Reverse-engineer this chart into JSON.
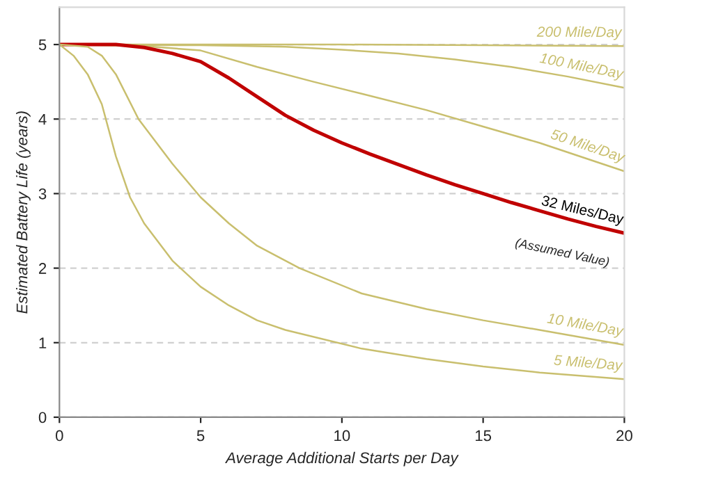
{
  "chart_data": {
    "type": "line",
    "xlabel": "Average Additional Starts per Day",
    "ylabel": "Estimated Battery Life (years)",
    "xlim": [
      0,
      20
    ],
    "xticks": [
      0,
      5,
      10,
      15,
      20
    ],
    "ylim": [
      0,
      5.5
    ],
    "yticks": [
      0,
      1,
      2,
      3,
      4,
      5
    ],
    "grid": "y",
    "legend": false,
    "line_style": "solid",
    "marker": "none",
    "series": [
      {
        "name": "200 Mile/Day",
        "color": "#c9bf6e",
        "x": [
          0,
          5,
          10,
          15,
          20
        ],
        "values": [
          5,
          5,
          5,
          4.99,
          4.98
        ]
      },
      {
        "name": "100 Mile/Day",
        "color": "#c9bf6e",
        "x": [
          0,
          5,
          8,
          10,
          12,
          14,
          16,
          18,
          20
        ],
        "values": [
          5,
          4.99,
          4.97,
          4.93,
          4.88,
          4.8,
          4.7,
          4.57,
          4.42
        ]
      },
      {
        "name": "50 Mile/Day",
        "color": "#c9bf6e",
        "x": [
          0,
          3,
          5,
          7,
          9,
          10.7,
          13,
          15,
          17,
          20
        ],
        "values": [
          5,
          4.98,
          4.92,
          4.7,
          4.5,
          4.34,
          4.12,
          3.9,
          3.68,
          3.3
        ]
      },
      {
        "name": "32 Miles/Day",
        "color": "#c00000",
        "x": [
          0,
          2,
          3,
          4,
          5,
          6,
          7,
          8,
          9,
          10,
          11,
          12,
          13,
          14,
          15,
          16,
          17,
          18,
          19,
          20
        ],
        "values": [
          5,
          5,
          4.96,
          4.88,
          4.77,
          4.55,
          4.3,
          4.05,
          3.85,
          3.68,
          3.53,
          3.39,
          3.25,
          3.12,
          3.0,
          2.88,
          2.77,
          2.66,
          2.56,
          2.47
        ]
      },
      {
        "name": "10 Mile/Day",
        "color": "#c9bf6e",
        "x": [
          0,
          1,
          1.5,
          2,
          2.8,
          4,
          5,
          6,
          7,
          8.5,
          10.7,
          13,
          15,
          17,
          20
        ],
        "values": [
          5,
          4.97,
          4.85,
          4.6,
          4.0,
          3.4,
          2.95,
          2.6,
          2.3,
          2.0,
          1.66,
          1.45,
          1.3,
          1.17,
          0.97
        ]
      },
      {
        "name": "5 Mile/Day",
        "color": "#c9bf6e",
        "x": [
          0,
          0.5,
          1,
          1.5,
          2,
          2.5,
          3,
          4,
          5,
          6,
          7,
          8,
          10.7,
          13,
          15,
          17,
          20
        ],
        "values": [
          5,
          4.85,
          4.6,
          4.2,
          3.5,
          2.95,
          2.6,
          2.1,
          1.75,
          1.5,
          1.3,
          1.17,
          0.92,
          0.78,
          0.68,
          0.6,
          0.51
        ]
      }
    ],
    "annotations": [
      "(Assumed Value)"
    ]
  }
}
